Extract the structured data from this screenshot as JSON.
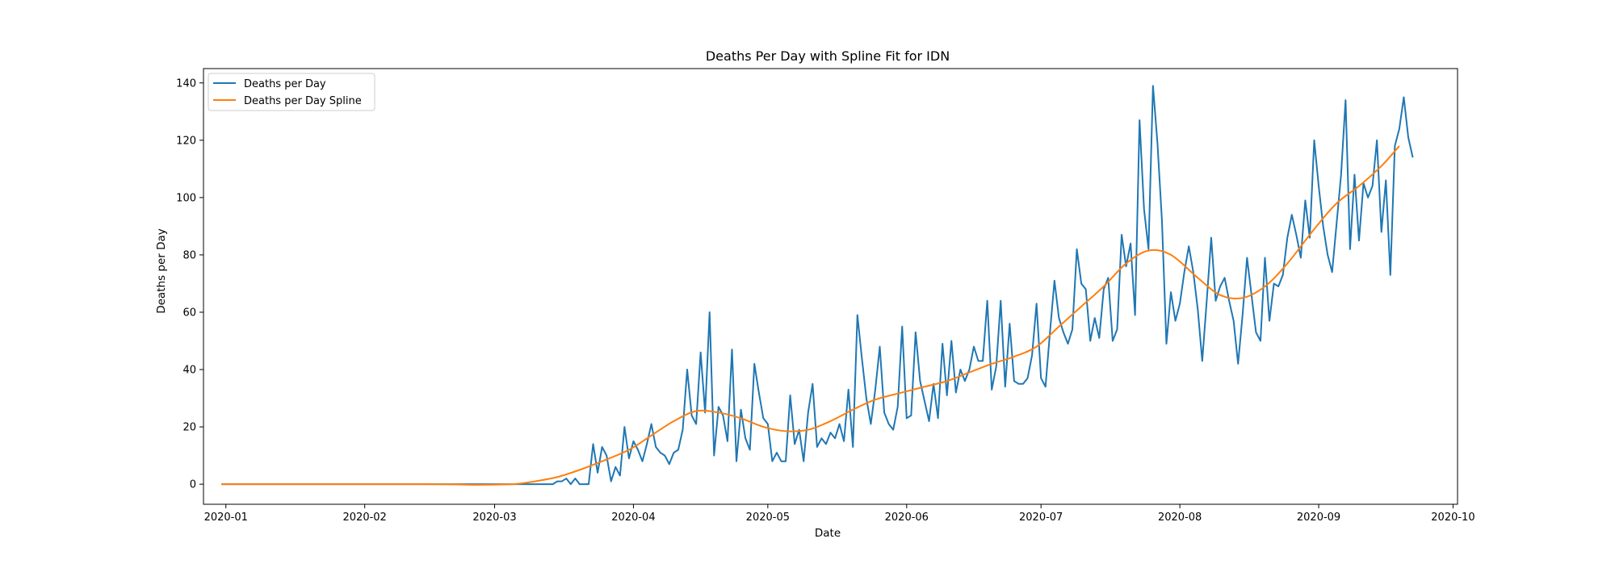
{
  "chart_data": {
    "type": "line",
    "title": "Deaths Per Day with Spline Fit for IDN",
    "xlabel": "Date",
    "ylabel": "Deaths per Day",
    "x_start": "2019-12-31",
    "x_step": "1 day",
    "xlim": [
      "2019-12-27",
      "2020-10-02"
    ],
    "ylim": [
      -7,
      145
    ],
    "xticks": [
      "2020-01",
      "2020-02",
      "2020-03",
      "2020-04",
      "2020-05",
      "2020-06",
      "2020-07",
      "2020-08",
      "2020-09",
      "2020-10"
    ],
    "yticks": [
      "0",
      "20",
      "40",
      "60",
      "80",
      "100",
      "120",
      "140"
    ],
    "grid": false,
    "legend": "top-left",
    "series": [
      {
        "name": "Deaths per Day",
        "color": "#1f77b4",
        "values": [
          0,
          0,
          0,
          0,
          0,
          0,
          0,
          0,
          0,
          0,
          0,
          0,
          0,
          0,
          0,
          0,
          0,
          0,
          0,
          0,
          0,
          0,
          0,
          0,
          0,
          0,
          0,
          0,
          0,
          0,
          0,
          0,
          0,
          0,
          0,
          0,
          0,
          0,
          0,
          0,
          0,
          0,
          0,
          0,
          0,
          0,
          0,
          0,
          0,
          0,
          0,
          0,
          0,
          0,
          0,
          0,
          0,
          0,
          0,
          0,
          0,
          0,
          0,
          0,
          0,
          0,
          0,
          0,
          0,
          0,
          0,
          0,
          0,
          0,
          0,
          1,
          1,
          2,
          0,
          2,
          0,
          0,
          0,
          14,
          4,
          13,
          10,
          1,
          6,
          3,
          20,
          9,
          15,
          12,
          8,
          14,
          21,
          13,
          11,
          10,
          7,
          11,
          12,
          19,
          40,
          24,
          21,
          46,
          25,
          60,
          10,
          27,
          24,
          15,
          47,
          8,
          26,
          16,
          12,
          42,
          32,
          23,
          21,
          8,
          11,
          8,
          8,
          31,
          14,
          19,
          8,
          25,
          35,
          13,
          16,
          14,
          18,
          16,
          21,
          15,
          33,
          13,
          59,
          44,
          30,
          21,
          33,
          48,
          25,
          21,
          19,
          27,
          55,
          23,
          24,
          53,
          36,
          29,
          22,
          35,
          23,
          49,
          31,
          50,
          32,
          40,
          36,
          40,
          48,
          43,
          43,
          64,
          33,
          41,
          64,
          34,
          56,
          36,
          35,
          35,
          37,
          45,
          63,
          37,
          34,
          53,
          71,
          58,
          53,
          49,
          54,
          82,
          70,
          68,
          50,
          58,
          51,
          68,
          72,
          50,
          54,
          87,
          76,
          84,
          59,
          127,
          96,
          82,
          139,
          119,
          92,
          49,
          67,
          57,
          63,
          74,
          83,
          74,
          61,
          43,
          64,
          86,
          64,
          69,
          72,
          64,
          57,
          42,
          59,
          79,
          66,
          53,
          50,
          79,
          57,
          70,
          69,
          73,
          86,
          94,
          87,
          79,
          99,
          86,
          120,
          104,
          90,
          80,
          74,
          91,
          108,
          134,
          82,
          108,
          85,
          105,
          100,
          104,
          120,
          88,
          106,
          73,
          118,
          124,
          135,
          121,
          114
        ]
      },
      {
        "name": "Deaths per Day Spline",
        "color": "#ff7f0e",
        "points": [
          [
            "2019-12-31",
            0
          ],
          [
            "2020-02-15",
            0
          ],
          [
            "2020-02-25",
            -0.2
          ],
          [
            "2020-03-05",
            0
          ],
          [
            "2020-03-10",
            1
          ],
          [
            "2020-03-15",
            2.5
          ],
          [
            "2020-03-20",
            5
          ],
          [
            "2020-03-25",
            8
          ],
          [
            "2020-03-31",
            12
          ],
          [
            "2020-04-05",
            17
          ],
          [
            "2020-04-10",
            22
          ],
          [
            "2020-04-15",
            25.5
          ],
          [
            "2020-04-20",
            25
          ],
          [
            "2020-04-25",
            23
          ],
          [
            "2020-04-30",
            20
          ],
          [
            "2020-05-05",
            18.5
          ],
          [
            "2020-05-10",
            19
          ],
          [
            "2020-05-15",
            22
          ],
          [
            "2020-05-20",
            26
          ],
          [
            "2020-05-25",
            29.5
          ],
          [
            "2020-05-31",
            32
          ],
          [
            "2020-06-05",
            34
          ],
          [
            "2020-06-10",
            36
          ],
          [
            "2020-06-15",
            39
          ],
          [
            "2020-06-20",
            42
          ],
          [
            "2020-06-25",
            44.5
          ],
          [
            "2020-06-30",
            48
          ],
          [
            "2020-07-05",
            55
          ],
          [
            "2020-07-10",
            62
          ],
          [
            "2020-07-15",
            69
          ],
          [
            "2020-07-20",
            77
          ],
          [
            "2020-07-25",
            81.5
          ],
          [
            "2020-07-30",
            80
          ],
          [
            "2020-08-05",
            72
          ],
          [
            "2020-08-10",
            66
          ],
          [
            "2020-08-15",
            65
          ],
          [
            "2020-08-20",
            69
          ],
          [
            "2020-08-25",
            77
          ],
          [
            "2020-08-31",
            89
          ],
          [
            "2020-09-05",
            98
          ],
          [
            "2020-09-10",
            104
          ],
          [
            "2020-09-15",
            111
          ],
          [
            "2020-09-19",
            118
          ]
        ]
      }
    ]
  }
}
